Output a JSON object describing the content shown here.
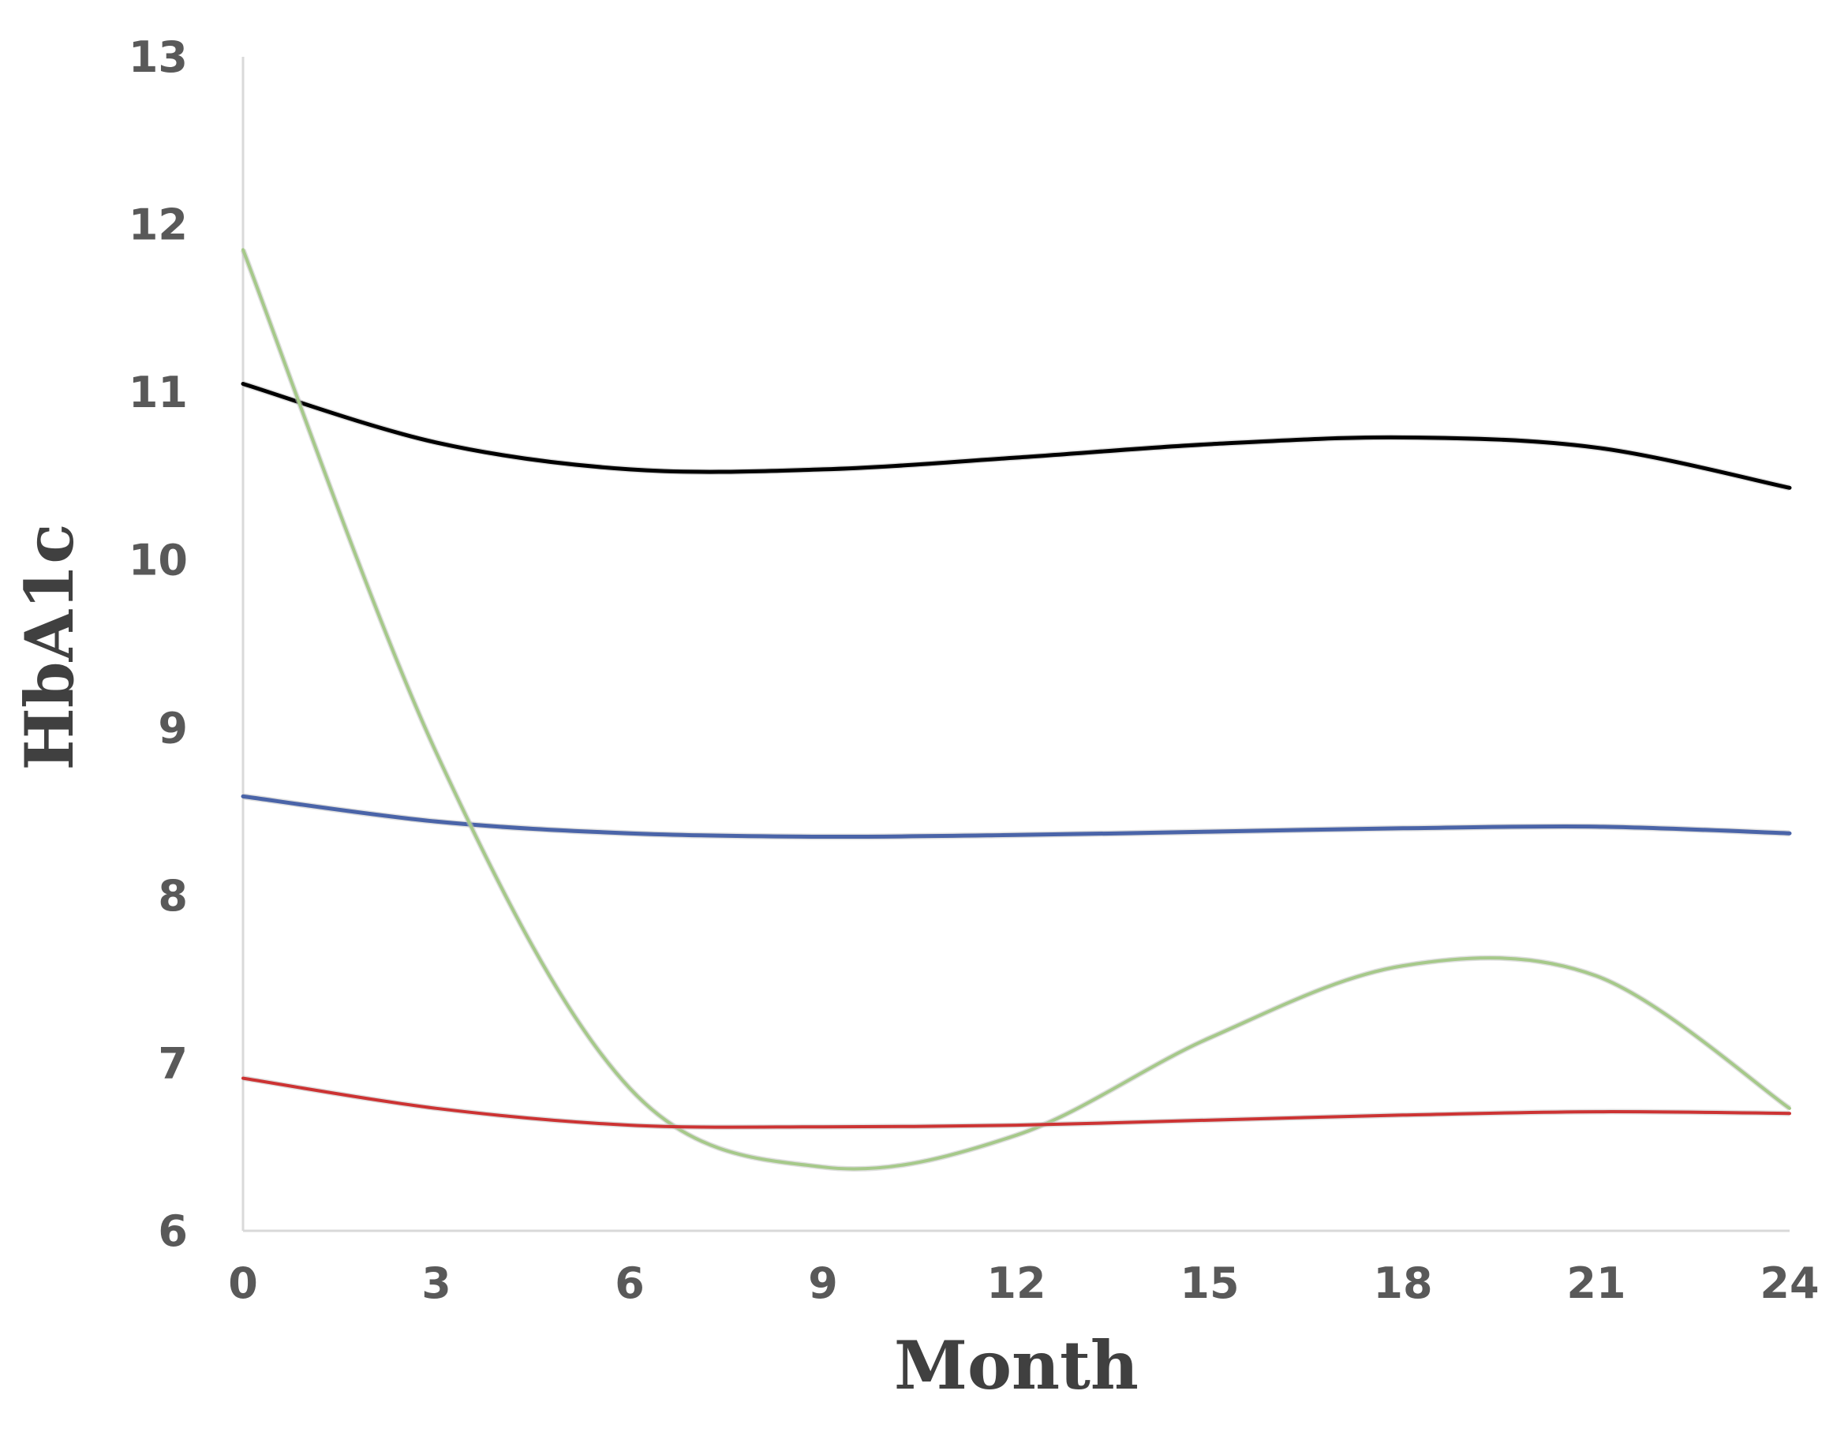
{
  "chart_data": {
    "type": "line",
    "title": "",
    "xlabel": "Month",
    "ylabel": "HbA1c",
    "xlim": [
      0,
      24
    ],
    "ylim": [
      6,
      13
    ],
    "x_ticks": [
      "0",
      "3",
      "6",
      "9",
      "12",
      "15",
      "18",
      "21",
      "24"
    ],
    "y_ticks": [
      "6",
      "7",
      "8",
      "9",
      "10",
      "11",
      "12",
      "13"
    ],
    "grid": false,
    "legend": "none",
    "series": [
      {
        "color": "#000000",
        "x": [
          0,
          3,
          6,
          9,
          12,
          15,
          18,
          21,
          24
        ],
        "y": [
          11.05,
          10.7,
          10.54,
          10.54,
          10.61,
          10.69,
          10.73,
          10.67,
          10.43
        ]
      },
      {
        "color": "#4a64a8",
        "x": [
          0,
          3,
          6,
          9,
          12,
          15,
          18,
          21,
          24
        ],
        "y": [
          8.59,
          8.44,
          8.37,
          8.35,
          8.36,
          8.38,
          8.4,
          8.41,
          8.37
        ]
      },
      {
        "color": "#a6c98a",
        "x": [
          0,
          3,
          6,
          9,
          12,
          15,
          18,
          21,
          24
        ],
        "y": [
          11.85,
          8.85,
          6.85,
          6.38,
          6.57,
          7.15,
          7.58,
          7.52,
          6.73
        ]
      },
      {
        "color": "#cc3333",
        "x": [
          0,
          3,
          6,
          9,
          12,
          15,
          18,
          21,
          24
        ],
        "y": [
          6.91,
          6.73,
          6.63,
          6.62,
          6.63,
          6.66,
          6.69,
          6.71,
          6.7
        ]
      }
    ]
  }
}
